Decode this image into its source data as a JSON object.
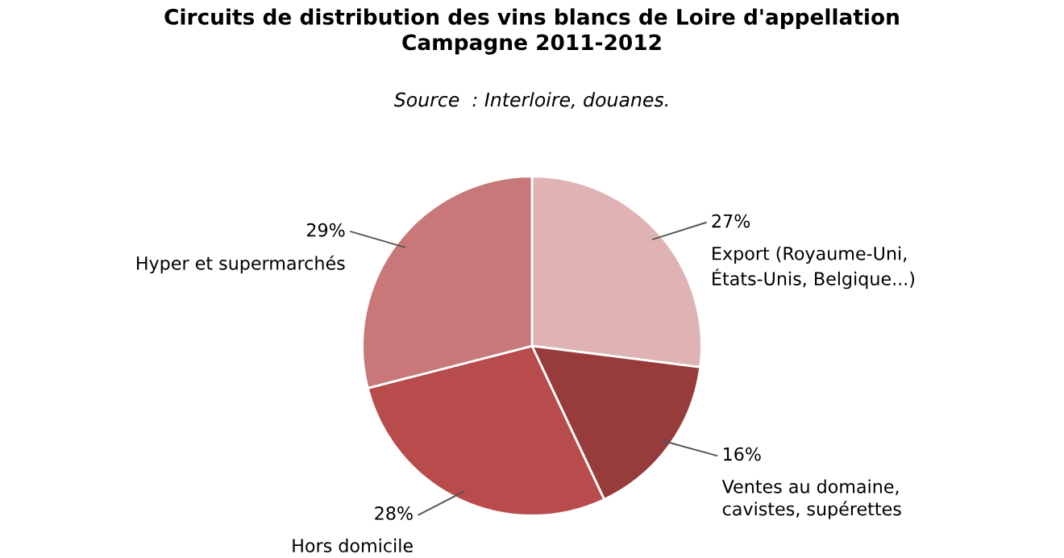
{
  "chart_data": {
    "type": "pie",
    "title": "Circuits de distribution des vins blancs de Loire d'appellation\nCampagne 2011-2012",
    "subtitle": "Source  : Interloire, douanes.",
    "categories": [
      "Export (Royaume-Uni,\nÉtats-Unis, Belgique...)",
      "Ventes au domaine,\ncavistes, supérettes",
      "Hors domicile",
      "Hyper et supermarchés"
    ],
    "values": [
      27,
      16,
      28,
      29
    ],
    "value_labels": [
      "27%",
      "16%",
      "28%",
      "29%"
    ],
    "colors": [
      "#dfb3b3",
      "#983b3b",
      "#b84b4b",
      "#c87878"
    ]
  }
}
